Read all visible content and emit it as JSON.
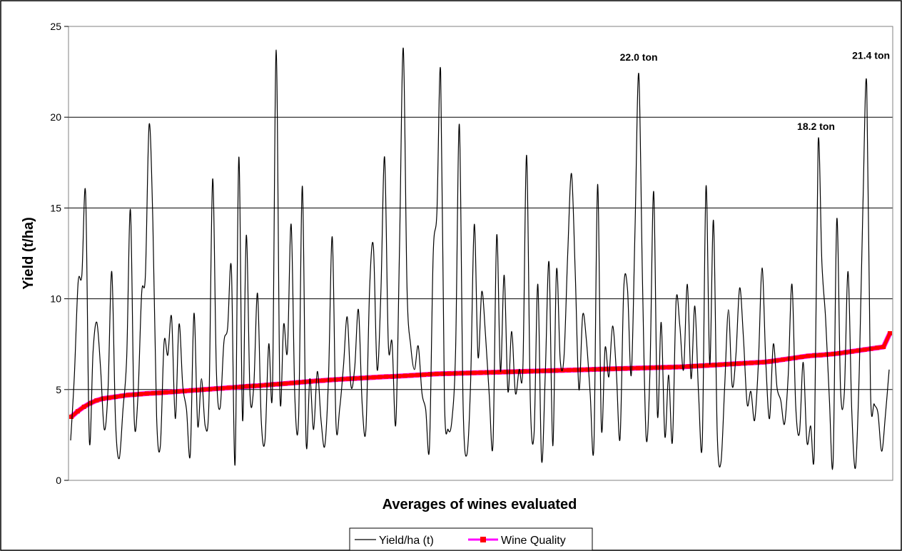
{
  "chart_data": {
    "type": "line",
    "title": "",
    "xlabel": "Averages of wines evaluated",
    "ylabel": "Yield (t/ha)",
    "ylim": [
      0,
      25
    ],
    "yticks": [
      "0",
      "5",
      "10",
      "15",
      "20",
      "25"
    ],
    "grid": "horizontal",
    "legend_position": "bottom",
    "series": [
      {
        "name": "Yield/ha (t)",
        "color": "#000000",
        "marker": "none",
        "values": [
          2.2,
          5.8,
          10.9,
          11.3,
          15.8,
          2.2,
          7.1,
          8.7,
          6.2,
          2.8,
          5.0,
          11.5,
          3.3,
          1.2,
          3.9,
          6.8,
          14.9,
          3.4,
          4.6,
          10.3,
          11.3,
          19.6,
          14.2,
          3.5,
          1.9,
          7.6,
          6.9,
          9.0,
          3.4,
          8.6,
          5.2,
          3.9,
          1.4,
          9.2,
          3.0,
          5.6,
          3.0,
          4.3,
          16.6,
          6.0,
          4.0,
          7.6,
          8.4,
          11.7,
          0.9,
          17.8,
          3.3,
          13.5,
          4.7,
          5.2,
          10.3,
          3.3,
          2.2,
          7.5,
          5.0,
          23.7,
          4.7,
          8.6,
          7.1,
          14.1,
          4.5,
          3.5,
          16.2,
          2.1,
          5.6,
          2.8,
          6.0,
          3.3,
          1.9,
          5.7,
          13.4,
          3.1,
          4.0,
          6.3,
          9.0,
          5.2,
          6.2,
          9.4,
          4.2,
          2.8,
          10.6,
          12.9,
          6.1,
          10.3,
          17.8,
          7.5,
          7.6,
          3.1,
          12.9,
          23.8,
          10.6,
          7.4,
          6.1,
          7.4,
          4.8,
          3.9,
          1.8,
          12.4,
          14.8,
          22.5,
          4.6,
          2.8,
          3.3,
          7.2,
          19.6,
          4.2,
          1.4,
          5.3,
          14.1,
          6.8,
          10.4,
          8.0,
          4.7,
          2.0,
          13.5,
          6.0,
          11.3,
          4.9,
          8.2,
          4.8,
          6.1,
          6.2,
          17.9,
          4.3,
          2.6,
          10.8,
          1.1,
          5.9,
          12.0,
          1.9,
          11.6,
          6.6,
          6.8,
          12.5,
          16.9,
          11.5,
          5.0,
          9.1,
          7.7,
          4.8,
          1.9,
          16.3,
          2.9,
          7.3,
          5.7,
          8.5,
          6.0,
          2.3,
          10.6,
          10.5,
          5.8,
          13.8,
          22.4,
          11.0,
          2.3,
          6.0,
          15.9,
          3.6,
          8.7,
          2.4,
          5.8,
          2.1,
          9.9,
          8.5,
          6.1,
          10.8,
          5.6,
          9.6,
          4.8,
          2.1,
          16.2,
          6.4,
          14.3,
          2.6,
          1.0,
          5.2,
          9.4,
          5.2,
          6.9,
          10.6,
          7.9,
          4.2,
          4.9,
          3.3,
          6.4,
          11.7,
          6.5,
          3.4,
          7.5,
          5.1,
          4.4,
          3.1,
          5.8,
          10.8,
          4.1,
          2.6,
          6.5,
          2.1,
          3.0,
          1.8,
          18.6,
          12.0,
          8.9,
          4.5,
          1.0,
          14.4,
          5.0,
          4.8,
          11.5,
          3.8,
          0.7,
          6.0,
          15.3,
          21.8,
          5.0,
          4.2,
          3.7,
          1.6,
          3.6,
          6.1
        ]
      },
      {
        "name": "Wine Quality",
        "color": "#ff0000",
        "marker_color": "#ff00ff",
        "marker": "square",
        "values": [
          3.5,
          3.8,
          4.05,
          4.25,
          4.4,
          4.5,
          4.55,
          4.6,
          4.65,
          4.7,
          4.72,
          4.75,
          4.78,
          4.8,
          4.82,
          4.85,
          4.87,
          4.9,
          4.92,
          4.95,
          4.97,
          5.0,
          5.02,
          5.05,
          5.07,
          5.1,
          5.12,
          5.15,
          5.18,
          5.2,
          5.22,
          5.25,
          5.28,
          5.3,
          5.33,
          5.36,
          5.39,
          5.42,
          5.45,
          5.48,
          5.5,
          5.53,
          5.55,
          5.57,
          5.59,
          5.61,
          5.63,
          5.65,
          5.67,
          5.69,
          5.71,
          5.72,
          5.74,
          5.76,
          5.78,
          5.8,
          5.82,
          5.84,
          5.86,
          5.87,
          5.88,
          5.89,
          5.9,
          5.91,
          5.92,
          5.93,
          5.94,
          5.95,
          5.96,
          5.97,
          5.98,
          5.99,
          6.0,
          6.01,
          6.02,
          6.03,
          6.04,
          6.05,
          6.06,
          6.07,
          6.08,
          6.09,
          6.1,
          6.11,
          6.12,
          6.13,
          6.14,
          6.15,
          6.16,
          6.17,
          6.18,
          6.19,
          6.2,
          6.21,
          6.22,
          6.23,
          6.24,
          6.25,
          6.27,
          6.29,
          6.31,
          6.33,
          6.35,
          6.37,
          6.39,
          6.41,
          6.43,
          6.45,
          6.47,
          6.49,
          6.51,
          6.55,
          6.6,
          6.65,
          6.7,
          6.75,
          6.8,
          6.85,
          6.88,
          6.9,
          6.93,
          6.96,
          7.0,
          7.05,
          7.1,
          7.15,
          7.2,
          7.25,
          7.3,
          7.35,
          8.1
        ]
      }
    ],
    "annotations": [
      "22.0 ton",
      "18.2 ton",
      "21.4 ton"
    ]
  }
}
